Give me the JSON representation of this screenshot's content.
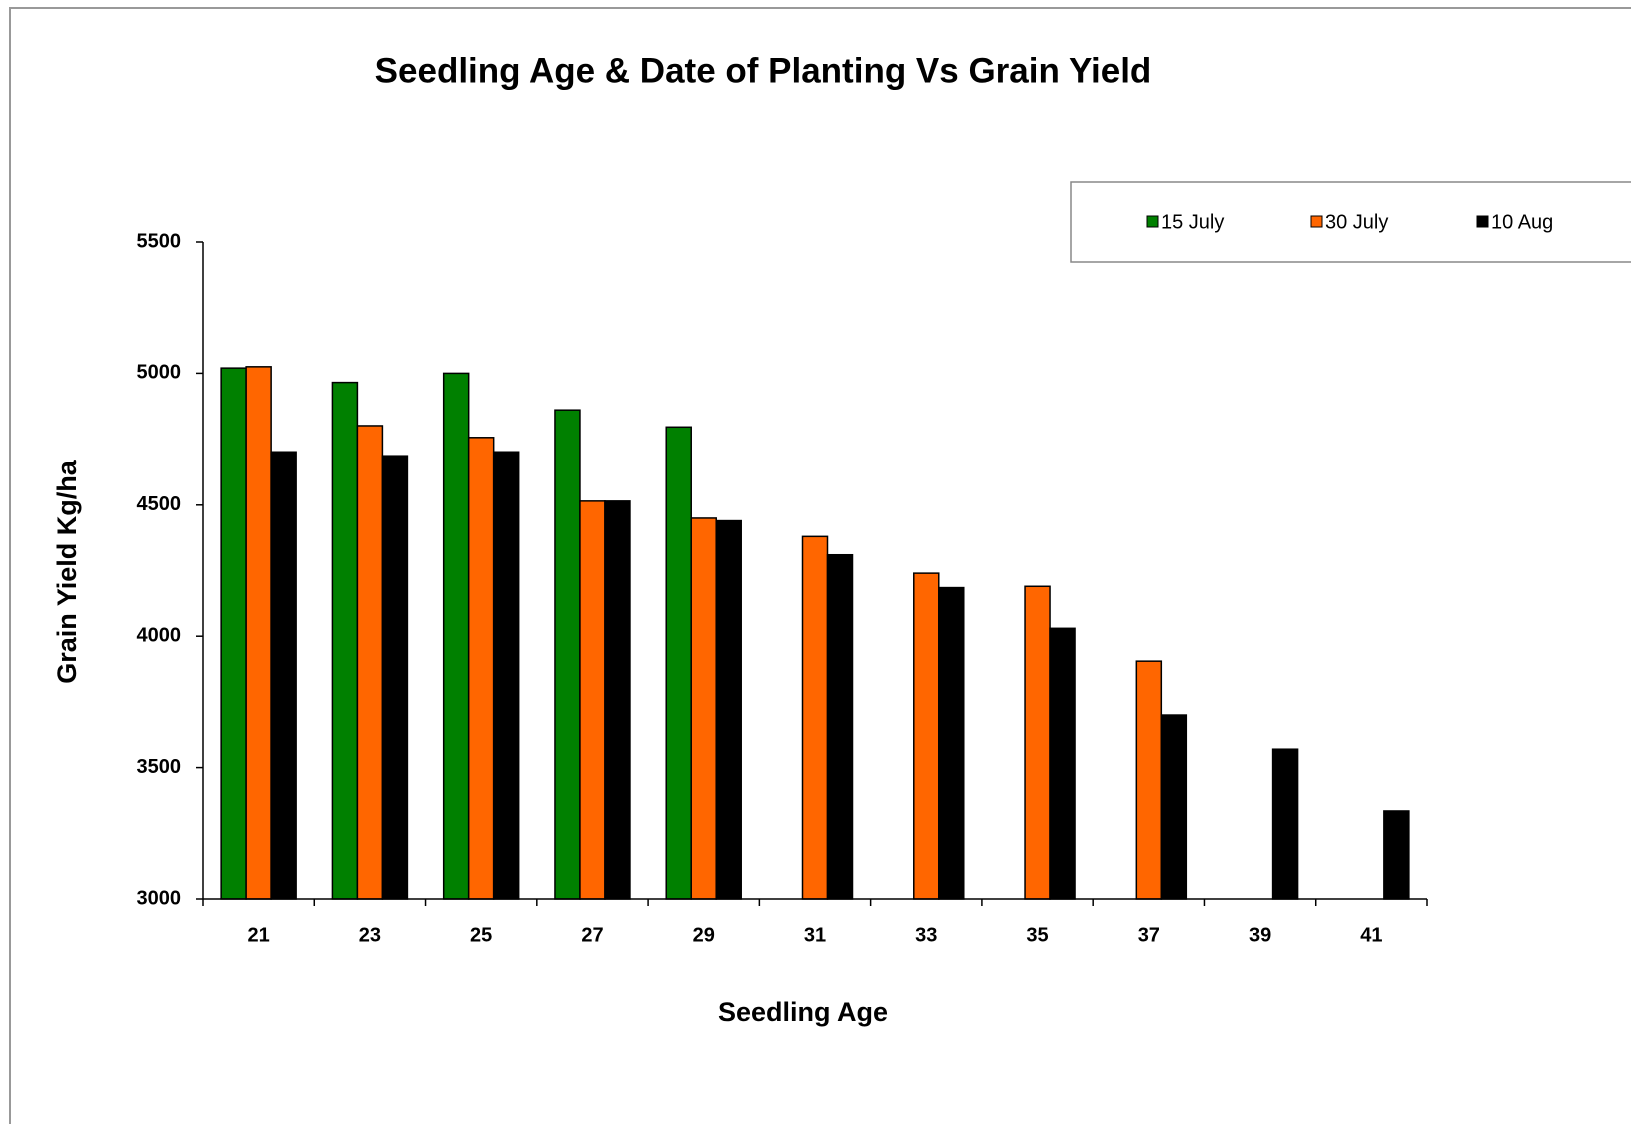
{
  "chart_data": {
    "type": "bar",
    "title": "Seedling Age & Date of Planting Vs Grain Yield",
    "x_label": "Seedling Age",
    "y_label": "Grain Yield Kg/ha",
    "categories": [
      "21",
      "23",
      "25",
      "27",
      "29",
      "31",
      "33",
      "35",
      "37",
      "39",
      "41"
    ],
    "series": [
      {
        "name": "15 July",
        "color": "#008000",
        "values": [
          5020,
          4965,
          5000,
          4860,
          4795,
          null,
          null,
          null,
          null,
          null,
          null
        ]
      },
      {
        "name": "30 July",
        "color": "#ff6600",
        "values": [
          5025,
          4800,
          4755,
          4515,
          4450,
          4380,
          4240,
          4190,
          3905,
          null,
          null
        ]
      },
      {
        "name": "10 Aug",
        "color": "#000000",
        "values": [
          4700,
          4685,
          4700,
          4515,
          4440,
          4310,
          4185,
          4030,
          3700,
          3570,
          3335
        ]
      }
    ],
    "ylim": [
      3000,
      5500
    ],
    "yticks": [
      3000,
      3500,
      4000,
      4500,
      5000,
      5500
    ],
    "grid": false,
    "legend": "top-right"
  }
}
